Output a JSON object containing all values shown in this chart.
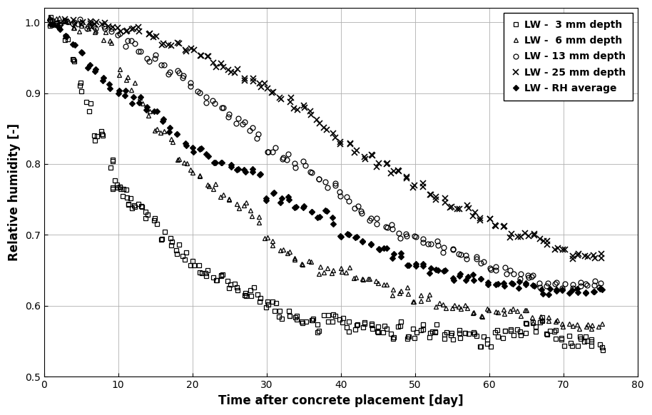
{
  "xlabel": "Time after concrete placement [day]",
  "ylabel": "Relative humidity [-]",
  "xlim": [
    0,
    80
  ],
  "ylim": [
    0.5,
    1.02
  ],
  "xticks": [
    0,
    10,
    20,
    30,
    40,
    50,
    60,
    70,
    80
  ],
  "yticks": [
    0.5,
    0.6,
    0.7,
    0.8,
    0.9,
    1.0
  ],
  "series": {
    "lw3": {
      "label": "LW -  3 mm depth",
      "marker": "s",
      "fillstyle": "none",
      "markersize": 5,
      "x": [
        1,
        2,
        3,
        4,
        5,
        6,
        7,
        8,
        9,
        9.5,
        10,
        10.5,
        11,
        11.5,
        12,
        13,
        14,
        15,
        16,
        17,
        18,
        19,
        20,
        21,
        22,
        23,
        24,
        25,
        26,
        27,
        28,
        29,
        30,
        31,
        32,
        33,
        34,
        35,
        36,
        37,
        38,
        39,
        40,
        41,
        42,
        43,
        44,
        45,
        46,
        47,
        48,
        49,
        50,
        51,
        52,
        53,
        54,
        55,
        56,
        57,
        58,
        59,
        60,
        61,
        62,
        63,
        64,
        65,
        66,
        67,
        68,
        69,
        70,
        71,
        72,
        73,
        74,
        75
      ],
      "y": [
        1.0,
        0.99,
        0.98,
        0.95,
        0.91,
        0.88,
        0.84,
        0.84,
        0.8,
        0.77,
        0.77,
        0.76,
        0.76,
        0.75,
        0.74,
        0.74,
        0.73,
        0.72,
        0.7,
        0.69,
        0.68,
        0.67,
        0.66,
        0.65,
        0.65,
        0.64,
        0.64,
        0.63,
        0.63,
        0.62,
        0.62,
        0.61,
        0.6,
        0.6,
        0.59,
        0.59,
        0.58,
        0.58,
        0.58,
        0.57,
        0.58,
        0.58,
        0.58,
        0.57,
        0.57,
        0.57,
        0.57,
        0.57,
        0.57,
        0.56,
        0.57,
        0.56,
        0.56,
        0.57,
        0.56,
        0.57,
        0.56,
        0.56,
        0.56,
        0.56,
        0.56,
        0.55,
        0.55,
        0.56,
        0.56,
        0.56,
        0.56,
        0.57,
        0.57,
        0.58,
        0.56,
        0.56,
        0.55,
        0.55,
        0.55,
        0.55,
        0.55,
        0.54
      ]
    },
    "lw6": {
      "label": "LW -  6 mm depth",
      "marker": "^",
      "fillstyle": "none",
      "markersize": 5,
      "x": [
        1,
        2,
        3,
        4,
        5,
        6,
        7,
        8,
        9,
        10,
        11,
        12,
        13,
        14,
        15,
        16,
        17,
        18,
        19,
        20,
        21,
        22,
        23,
        24,
        25,
        26,
        27,
        28,
        29,
        30,
        31,
        32,
        33,
        34,
        35,
        36,
        37,
        38,
        39,
        40,
        41,
        42,
        43,
        44,
        45,
        46,
        47,
        48,
        49,
        50,
        51,
        52,
        53,
        54,
        55,
        56,
        57,
        58,
        59,
        60,
        61,
        62,
        63,
        64,
        65,
        66,
        67,
        68,
        69,
        70,
        71,
        72,
        73,
        74,
        75
      ],
      "y": [
        1.0,
        1.0,
        1.0,
        0.99,
        0.99,
        0.99,
        0.99,
        0.98,
        0.97,
        0.93,
        0.92,
        0.91,
        0.89,
        0.87,
        0.85,
        0.84,
        0.83,
        0.81,
        0.8,
        0.79,
        0.78,
        0.77,
        0.77,
        0.76,
        0.75,
        0.74,
        0.74,
        0.73,
        0.72,
        0.7,
        0.69,
        0.68,
        0.68,
        0.67,
        0.66,
        0.66,
        0.65,
        0.65,
        0.65,
        0.65,
        0.65,
        0.64,
        0.64,
        0.64,
        0.63,
        0.63,
        0.62,
        0.62,
        0.62,
        0.61,
        0.61,
        0.61,
        0.6,
        0.6,
        0.6,
        0.6,
        0.6,
        0.59,
        0.59,
        0.59,
        0.59,
        0.59,
        0.59,
        0.59,
        0.59,
        0.58,
        0.58,
        0.58,
        0.58,
        0.57,
        0.57,
        0.57,
        0.57,
        0.57,
        0.57
      ]
    },
    "lw13": {
      "label": "LW - 13 mm depth",
      "marker": "o",
      "fillstyle": "none",
      "markersize": 5,
      "x": [
        1,
        2,
        3,
        4,
        5,
        6,
        7,
        8,
        9,
        10,
        11,
        12,
        13,
        14,
        15,
        16,
        17,
        18,
        19,
        20,
        21,
        22,
        23,
        24,
        25,
        26,
        27,
        28,
        29,
        30,
        31,
        32,
        33,
        34,
        35,
        36,
        37,
        38,
        39,
        40,
        41,
        42,
        43,
        44,
        45,
        46,
        47,
        48,
        49,
        50,
        51,
        52,
        53,
        54,
        55,
        56,
        57,
        58,
        59,
        60,
        61,
        62,
        63,
        64,
        65,
        66,
        67,
        68,
        69,
        70,
        71,
        72,
        73,
        74,
        75
      ],
      "y": [
        1.0,
        1.0,
        1.0,
        1.0,
        1.0,
        0.99,
        0.99,
        0.99,
        0.99,
        0.98,
        0.97,
        0.97,
        0.96,
        0.95,
        0.95,
        0.94,
        0.93,
        0.93,
        0.92,
        0.91,
        0.9,
        0.89,
        0.89,
        0.88,
        0.87,
        0.86,
        0.86,
        0.85,
        0.84,
        0.82,
        0.82,
        0.81,
        0.81,
        0.8,
        0.8,
        0.79,
        0.78,
        0.77,
        0.77,
        0.76,
        0.75,
        0.74,
        0.73,
        0.72,
        0.72,
        0.71,
        0.71,
        0.7,
        0.7,
        0.7,
        0.69,
        0.69,
        0.69,
        0.68,
        0.68,
        0.67,
        0.67,
        0.67,
        0.66,
        0.65,
        0.65,
        0.65,
        0.65,
        0.64,
        0.64,
        0.64,
        0.63,
        0.63,
        0.63,
        0.63,
        0.63,
        0.63,
        0.63,
        0.63,
        0.63
      ]
    },
    "lw25": {
      "label": "LW - 25 mm depth",
      "marker": "x",
      "fillstyle": "full",
      "markersize": 6,
      "x": [
        1,
        2,
        3,
        4,
        5,
        6,
        7,
        8,
        9,
        10,
        11,
        12,
        13,
        14,
        15,
        16,
        17,
        18,
        19,
        20,
        21,
        22,
        23,
        24,
        25,
        26,
        27,
        28,
        29,
        30,
        31,
        32,
        33,
        34,
        35,
        36,
        37,
        38,
        39,
        40,
        41,
        42,
        43,
        44,
        45,
        46,
        47,
        48,
        49,
        50,
        51,
        52,
        53,
        54,
        55,
        56,
        57,
        58,
        59,
        60,
        61,
        62,
        63,
        64,
        65,
        66,
        67,
        68,
        69,
        70,
        71,
        72,
        73,
        74,
        75
      ],
      "y": [
        1.0,
        1.0,
        1.0,
        1.0,
        1.0,
        1.0,
        1.0,
        1.0,
        0.99,
        0.99,
        0.99,
        0.99,
        0.99,
        0.98,
        0.98,
        0.97,
        0.97,
        0.97,
        0.96,
        0.96,
        0.95,
        0.95,
        0.94,
        0.94,
        0.93,
        0.93,
        0.92,
        0.92,
        0.91,
        0.91,
        0.9,
        0.89,
        0.89,
        0.88,
        0.88,
        0.87,
        0.86,
        0.85,
        0.84,
        0.83,
        0.83,
        0.82,
        0.81,
        0.81,
        0.8,
        0.8,
        0.79,
        0.79,
        0.78,
        0.77,
        0.77,
        0.76,
        0.75,
        0.75,
        0.74,
        0.74,
        0.74,
        0.73,
        0.72,
        0.72,
        0.71,
        0.71,
        0.7,
        0.7,
        0.7,
        0.7,
        0.69,
        0.69,
        0.68,
        0.68,
        0.67,
        0.67,
        0.67,
        0.67,
        0.67
      ]
    },
    "lw_avg": {
      "label": "LW - RH average",
      "marker": "D",
      "fillstyle": "full",
      "markersize": 5,
      "x": [
        1,
        2,
        3,
        4,
        5,
        6,
        7,
        8,
        9,
        10,
        11,
        12,
        13,
        14,
        15,
        16,
        17,
        18,
        19,
        20,
        21,
        22,
        23,
        24,
        25,
        26,
        27,
        28,
        29,
        30,
        31,
        32,
        33,
        34,
        35,
        36,
        37,
        38,
        39,
        40,
        41,
        42,
        43,
        44,
        45,
        46,
        47,
        48,
        49,
        50,
        51,
        52,
        53,
        54,
        55,
        56,
        57,
        58,
        59,
        60,
        61,
        62,
        63,
        64,
        65,
        66,
        67,
        68,
        69,
        70,
        71,
        72,
        73,
        74,
        75
      ],
      "y": [
        1.0,
        0.99,
        0.98,
        0.97,
        0.96,
        0.94,
        0.93,
        0.92,
        0.91,
        0.9,
        0.9,
        0.89,
        0.89,
        0.88,
        0.87,
        0.86,
        0.85,
        0.84,
        0.83,
        0.82,
        0.82,
        0.81,
        0.8,
        0.8,
        0.8,
        0.79,
        0.79,
        0.79,
        0.79,
        0.75,
        0.76,
        0.75,
        0.75,
        0.74,
        0.74,
        0.73,
        0.73,
        0.73,
        0.72,
        0.7,
        0.7,
        0.7,
        0.69,
        0.69,
        0.68,
        0.68,
        0.67,
        0.67,
        0.66,
        0.66,
        0.66,
        0.65,
        0.65,
        0.65,
        0.64,
        0.64,
        0.64,
        0.64,
        0.64,
        0.63,
        0.63,
        0.63,
        0.63,
        0.63,
        0.63,
        0.63,
        0.62,
        0.62,
        0.62,
        0.62,
        0.62,
        0.62,
        0.62,
        0.62,
        0.62
      ]
    }
  },
  "background_color": "#ffffff",
  "grid_color": "#b0b0b0",
  "legend_fontsize": 10,
  "axis_label_fontsize": 12,
  "tick_fontsize": 10
}
